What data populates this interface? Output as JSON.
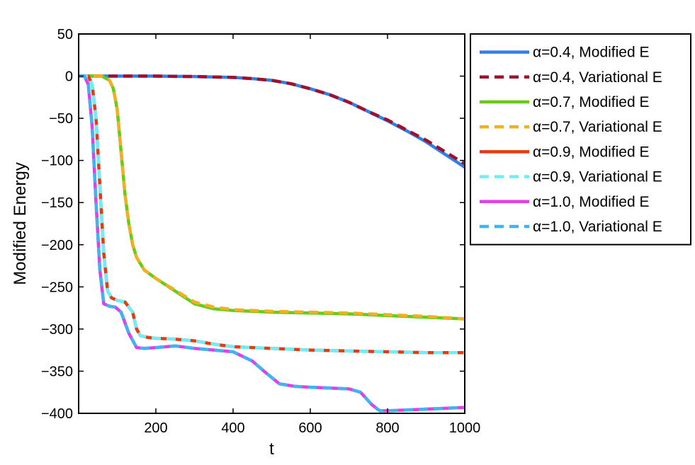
{
  "chart_data": {
    "type": "line",
    "title": "",
    "xlabel": "t",
    "ylabel": "Modified Energy",
    "xlim": [
      0,
      1000
    ],
    "ylim": [
      -400,
      50
    ],
    "xticks": [
      200,
      400,
      600,
      800,
      1000
    ],
    "xtick_labels": [
      "200",
      "400",
      "600",
      "800",
      "1000"
    ],
    "yticks": [
      50,
      0,
      -50,
      -100,
      -150,
      -200,
      -250,
      -300,
      -350,
      -400
    ],
    "ytick_labels": [
      "50",
      "0",
      "−50",
      "−100",
      "−150",
      "−200",
      "−250",
      "−300",
      "−350",
      "−400"
    ],
    "grid": false,
    "legend_position": "outside-right-top",
    "series": [
      {
        "name": "α=0.4, Modified E",
        "color": "#3080e8",
        "style": "solid",
        "x": [
          0,
          100,
          200,
          300,
          400,
          450,
          500,
          550,
          600,
          650,
          700,
          750,
          800,
          850,
          900,
          950,
          1000
        ],
        "y": [
          0,
          0,
          0,
          -0.5,
          -1.5,
          -3,
          -5,
          -9,
          -15,
          -22,
          -31,
          -42,
          -53,
          -65,
          -78,
          -93,
          -108
        ]
      },
      {
        "name": "α=0.4, Variational E",
        "color": "#a0102a",
        "style": "dashed",
        "x": [
          0,
          100,
          200,
          300,
          400,
          450,
          500,
          550,
          600,
          650,
          700,
          750,
          800,
          850,
          900,
          950,
          1000
        ],
        "y": [
          0,
          0,
          0,
          -0.5,
          -1.5,
          -3,
          -5,
          -9,
          -15,
          -22,
          -31,
          -42,
          -52,
          -64,
          -76,
          -90,
          -104
        ]
      },
      {
        "name": "α=0.7, Modified E",
        "color": "#66cc1a",
        "style": "solid",
        "x": [
          0,
          60,
          80,
          90,
          100,
          110,
          120,
          130,
          140,
          150,
          170,
          200,
          250,
          300,
          350,
          400,
          500,
          600,
          700,
          800,
          900,
          1000
        ],
        "y": [
          0,
          0,
          -5,
          -15,
          -40,
          -90,
          -140,
          -175,
          -200,
          -215,
          -230,
          -240,
          -255,
          -270,
          -276,
          -278,
          -280,
          -281,
          -282,
          -284,
          -286,
          -288
        ]
      },
      {
        "name": "α=0.7, Variational E",
        "color": "#f0b020",
        "style": "dashed",
        "x": [
          0,
          60,
          80,
          90,
          100,
          110,
          120,
          130,
          140,
          150,
          170,
          200,
          250,
          300,
          350,
          400,
          500,
          600,
          700,
          800,
          900,
          1000
        ],
        "y": [
          0,
          0,
          -5,
          -15,
          -40,
          -90,
          -140,
          -175,
          -200,
          -215,
          -230,
          -240,
          -254,
          -268,
          -274,
          -277,
          -279,
          -280,
          -281,
          -283,
          -285,
          -288
        ]
      },
      {
        "name": "α=0.9, Modified E",
        "color": "#e83a10",
        "style": "solid",
        "x": [
          0,
          25,
          35,
          45,
          55,
          65,
          75,
          85,
          100,
          120,
          140,
          150,
          160,
          180,
          200,
          250,
          300,
          350,
          400,
          500,
          600,
          700,
          800,
          900,
          1000
        ],
        "y": [
          0,
          0,
          -10,
          -50,
          -130,
          -210,
          -255,
          -263,
          -266,
          -268,
          -280,
          -300,
          -308,
          -310,
          -311,
          -312,
          -314,
          -318,
          -321,
          -323,
          -325,
          -326,
          -327,
          -328,
          -328
        ]
      },
      {
        "name": "α=0.9, Variational E",
        "color": "#70eef8",
        "style": "dashed",
        "x": [
          0,
          25,
          35,
          45,
          55,
          65,
          75,
          85,
          100,
          120,
          140,
          150,
          160,
          180,
          200,
          250,
          300,
          350,
          400,
          500,
          600,
          700,
          800,
          900,
          1000
        ],
        "y": [
          0,
          0,
          -10,
          -50,
          -130,
          -210,
          -255,
          -263,
          -266,
          -268,
          -280,
          -300,
          -308,
          -310,
          -311,
          -312,
          -314,
          -318,
          -321,
          -323,
          -325,
          -326,
          -327,
          -328,
          -328
        ]
      },
      {
        "name": "α=1.0, Modified E",
        "color": "#e040e8",
        "style": "solid",
        "x": [
          0,
          15,
          25,
          35,
          45,
          55,
          65,
          80,
          95,
          110,
          130,
          150,
          170,
          200,
          250,
          300,
          350,
          400,
          450,
          480,
          520,
          560,
          600,
          650,
          700,
          730,
          760,
          780,
          800,
          850,
          900,
          950,
          1000
        ],
        "y": [
          0,
          0,
          -10,
          -60,
          -150,
          -230,
          -270,
          -273,
          -274,
          -280,
          -305,
          -322,
          -323,
          -322,
          -320,
          -323,
          -325,
          -327,
          -338,
          -350,
          -365,
          -368,
          -369,
          -370,
          -371,
          -375,
          -390,
          -397,
          -397,
          -396,
          -395,
          -394,
          -393
        ]
      },
      {
        "name": "α=1.0, Variational E",
        "color": "#40b4f0",
        "style": "dashed",
        "x": [
          0,
          15,
          25,
          35,
          45,
          55,
          65,
          80,
          95,
          110,
          130,
          150,
          170,
          200,
          250,
          300,
          350,
          400,
          450,
          480,
          520,
          560,
          600,
          650,
          700,
          730,
          760,
          780,
          800,
          850,
          900,
          950,
          1000
        ],
        "y": [
          0,
          0,
          -10,
          -60,
          -150,
          -230,
          -270,
          -273,
          -274,
          -280,
          -305,
          -322,
          -323,
          -322,
          -320,
          -323,
          -325,
          -327,
          -338,
          -350,
          -365,
          -368,
          -369,
          -370,
          -371,
          -375,
          -390,
          -397,
          -397,
          -396,
          -395,
          -394,
          -393
        ]
      }
    ]
  }
}
